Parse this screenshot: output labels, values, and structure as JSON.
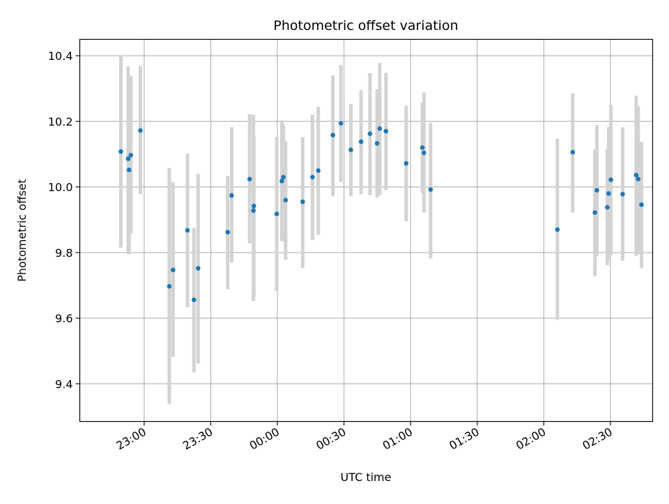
{
  "chart_data": {
    "type": "scatter",
    "title": "Photometric offset variation",
    "xlabel": "UTC time",
    "ylabel": "Photometric offset",
    "x_unit": "minutes after 00:00 UTC",
    "xlim": [
      -89,
      169
    ],
    "ylim": [
      9.285,
      10.45
    ],
    "grid": true,
    "x_ticks": [
      {
        "value": -60,
        "label": "23:00"
      },
      {
        "value": -30,
        "label": "23:30"
      },
      {
        "value": 0,
        "label": "00:00"
      },
      {
        "value": 30,
        "label": "00:30"
      },
      {
        "value": 60,
        "label": "01:00"
      },
      {
        "value": 90,
        "label": "01:30"
      },
      {
        "value": 120,
        "label": "02:00"
      },
      {
        "value": 150,
        "label": "02:30"
      }
    ],
    "y_ticks": [
      {
        "value": 9.4,
        "label": "9.4"
      },
      {
        "value": 9.6,
        "label": "9.6"
      },
      {
        "value": 9.8,
        "label": "9.8"
      },
      {
        "value": 10.0,
        "label": "10.0"
      },
      {
        "value": 10.2,
        "label": "10.2"
      },
      {
        "value": 10.4,
        "label": "10.4"
      }
    ],
    "colors": {
      "point": "#1f77b4",
      "errorbar": "#d3d3d3",
      "grid": "#b0b0b0"
    },
    "points": [
      {
        "x": -70.5,
        "y": 10.108,
        "ymin": 9.815,
        "ymax": 10.4
      },
      {
        "x": -67.2,
        "y": 10.086,
        "ymin": 9.795,
        "ymax": 10.368
      },
      {
        "x": -66.8,
        "y": 10.052,
        "ymin": 9.795,
        "ymax": 10.308
      },
      {
        "x": -66.0,
        "y": 10.097,
        "ymin": 9.858,
        "ymax": 10.338
      },
      {
        "x": -61.7,
        "y": 10.172,
        "ymin": 9.978,
        "ymax": 10.368
      },
      {
        "x": -48.7,
        "y": 9.697,
        "ymin": 9.338,
        "ymax": 10.058
      },
      {
        "x": -47.0,
        "y": 9.747,
        "ymin": 9.482,
        "ymax": 10.015
      },
      {
        "x": -40.5,
        "y": 9.868,
        "ymin": 9.633,
        "ymax": 10.102
      },
      {
        "x": -37.6,
        "y": 9.656,
        "ymin": 9.435,
        "ymax": 9.875
      },
      {
        "x": -35.7,
        "y": 9.752,
        "ymin": 9.462,
        "ymax": 10.04
      },
      {
        "x": -22.4,
        "y": 9.862,
        "ymin": 9.688,
        "ymax": 10.033
      },
      {
        "x": -20.6,
        "y": 9.974,
        "ymin": 9.77,
        "ymax": 10.182
      },
      {
        "x": -12.5,
        "y": 10.024,
        "ymin": 9.828,
        "ymax": 10.222
      },
      {
        "x": -10.8,
        "y": 9.928,
        "ymin": 9.652,
        "ymax": 10.22
      },
      {
        "x": -10.6,
        "y": 9.942,
        "ymin": 9.665,
        "ymax": 10.158
      },
      {
        "x": -0.3,
        "y": 9.918,
        "ymin": 9.683,
        "ymax": 10.152
      },
      {
        "x": 2.0,
        "y": 10.018,
        "ymin": 9.835,
        "ymax": 10.203
      },
      {
        "x": 2.7,
        "y": 10.03,
        "ymin": 9.835,
        "ymax": 10.19
      },
      {
        "x": 3.7,
        "y": 9.96,
        "ymin": 9.778,
        "ymax": 10.138
      },
      {
        "x": 11.4,
        "y": 9.955,
        "ymin": 9.753,
        "ymax": 10.152
      },
      {
        "x": 15.8,
        "y": 10.03,
        "ymin": 9.838,
        "ymax": 10.22
      },
      {
        "x": 18.4,
        "y": 10.05,
        "ymin": 9.855,
        "ymax": 10.245
      },
      {
        "x": 25.0,
        "y": 10.158,
        "ymin": 9.972,
        "ymax": 10.34
      },
      {
        "x": 28.6,
        "y": 10.194,
        "ymin": 10.015,
        "ymax": 10.372
      },
      {
        "x": 33.1,
        "y": 10.113,
        "ymin": 9.972,
        "ymax": 10.253
      },
      {
        "x": 37.7,
        "y": 10.138,
        "ymin": 9.978,
        "ymax": 10.295
      },
      {
        "x": 41.7,
        "y": 10.162,
        "ymin": 9.975,
        "ymax": 10.347
      },
      {
        "x": 44.9,
        "y": 10.133,
        "ymin": 9.968,
        "ymax": 10.298
      },
      {
        "x": 46.1,
        "y": 10.178,
        "ymin": 9.975,
        "ymax": 10.378
      },
      {
        "x": 48.9,
        "y": 10.17,
        "ymin": 9.99,
        "ymax": 10.348
      },
      {
        "x": 58.0,
        "y": 10.072,
        "ymin": 9.895,
        "ymax": 10.248
      },
      {
        "x": 65.3,
        "y": 10.12,
        "ymin": 9.982,
        "ymax": 10.258
      },
      {
        "x": 66.0,
        "y": 10.104,
        "ymin": 9.922,
        "ymax": 10.288
      },
      {
        "x": 69.0,
        "y": 9.992,
        "ymin": 9.782,
        "ymax": 10.195
      },
      {
        "x": 126.1,
        "y": 9.87,
        "ymin": 9.595,
        "ymax": 10.148
      },
      {
        "x": 133.0,
        "y": 10.106,
        "ymin": 9.922,
        "ymax": 10.285
      },
      {
        "x": 143.0,
        "y": 9.922,
        "ymin": 9.728,
        "ymax": 10.115
      },
      {
        "x": 143.9,
        "y": 9.99,
        "ymin": 9.79,
        "ymax": 10.188
      },
      {
        "x": 148.6,
        "y": 9.938,
        "ymin": 9.762,
        "ymax": 10.115
      },
      {
        "x": 149.2,
        "y": 9.98,
        "ymin": 9.775,
        "ymax": 10.183
      },
      {
        "x": 150.2,
        "y": 10.022,
        "ymin": 9.792,
        "ymax": 10.25
      },
      {
        "x": 155.5,
        "y": 9.978,
        "ymin": 9.775,
        "ymax": 10.182
      },
      {
        "x": 161.6,
        "y": 10.036,
        "ymin": 9.79,
        "ymax": 10.278
      },
      {
        "x": 162.5,
        "y": 10.024,
        "ymin": 9.795,
        "ymax": 10.245
      },
      {
        "x": 164.0,
        "y": 9.946,
        "ymin": 9.752,
        "ymax": 10.137
      }
    ]
  }
}
